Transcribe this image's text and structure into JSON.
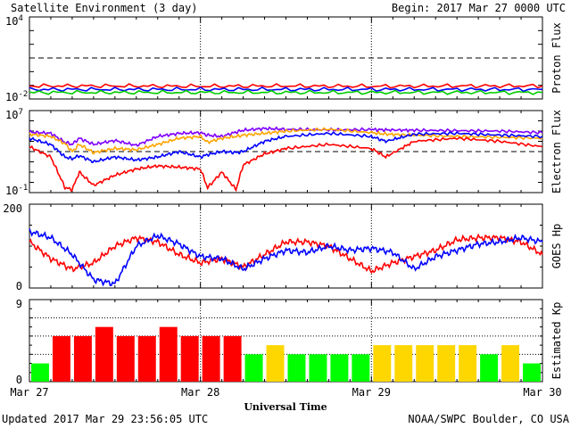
{
  "header": {
    "title": "Satellite Environment (3 day)",
    "begin": "Begin:  2017 Mar 27 0000 UTC"
  },
  "footer": {
    "updated": "Updated 2017 Mar 29 23:56:05 UTC",
    "credit": "NOAA/SWPC Boulder, CO USA"
  },
  "xaxis": {
    "label": "Universal Time",
    "ticks": [
      "Mar 27",
      "Mar 28",
      "Mar 29",
      "Mar 30"
    ]
  },
  "chart_data": [
    {
      "id": "proton",
      "type": "line",
      "ylabel": "Proton Flux",
      "ylim": [
        0.01,
        10000
      ],
      "ytick_labels": [
        {
          "base": "10",
          "exp": "4"
        },
        {
          "base": "10",
          "exp": "-2"
        }
      ],
      "log": true,
      "x": [
        0,
        12,
        24,
        36,
        48,
        60,
        72
      ],
      "reference_line": 10,
      "series": [
        {
          "color": "#ff0000",
          "values": [
            0.09,
            0.09,
            0.085,
            0.09,
            0.085,
            0.09,
            0.09
          ]
        },
        {
          "color": "#0000ff",
          "values": [
            0.05,
            0.05,
            0.05,
            0.05,
            0.05,
            0.05,
            0.05
          ]
        },
        {
          "color": "#00cc00",
          "values": [
            0.03,
            0.03,
            0.03,
            0.03,
            0.03,
            0.03,
            0.03
          ]
        }
      ]
    },
    {
      "id": "electron",
      "type": "line",
      "ylabel": "Electron Flux",
      "ylim": [
        0.1,
        10000000
      ],
      "ytick_labels": [
        {
          "base": "10",
          "exp": "7"
        },
        {
          "base": "10",
          "exp": "-1"
        }
      ],
      "log": true,
      "x": [
        0,
        3,
        5,
        6,
        7,
        9,
        12,
        15,
        18,
        21,
        24,
        25,
        27,
        29,
        30,
        33,
        36,
        42,
        48,
        50,
        54,
        60,
        66,
        72
      ],
      "reference_line": 1000,
      "series": [
        {
          "color": "#7f00ff",
          "values": [
            80000,
            60000,
            8000,
            5000,
            20000,
            5000,
            12000,
            4000,
            30000,
            60000,
            70000,
            40000,
            30000,
            80000,
            120000,
            180000,
            150000,
            130000,
            140000,
            130000,
            120000,
            110000,
            100000,
            70000
          ]
        },
        {
          "color": "#ffa500",
          "values": [
            50000,
            30000,
            6000,
            1000,
            5000,
            800,
            2000,
            1500,
            5000,
            20000,
            30000,
            8000,
            20000,
            30000,
            40000,
            60000,
            100000,
            150000,
            70000,
            50000,
            40000,
            30000,
            25000,
            20000
          ]
        },
        {
          "color": "#0000ff",
          "values": [
            20000,
            5000,
            300,
            200,
            400,
            100,
            300,
            150,
            300,
            1000,
            300,
            500,
            1000,
            800,
            1000,
            10000,
            30000,
            60000,
            30000,
            10000,
            50000,
            60000,
            40000,
            30000
          ]
        },
        {
          "color": "#ff0000",
          "values": [
            3000,
            300,
            0.3,
            0.2,
            10,
            0.5,
            5,
            20,
            40,
            30,
            20,
            0.3,
            10,
            0.2,
            50,
            600,
            2000,
            5000,
            2000,
            300,
            10000,
            20000,
            10000,
            3000
          ]
        }
      ]
    },
    {
      "id": "goes-hp",
      "type": "line",
      "ylabel": "GOES Hp",
      "ylim": [
        0,
        200
      ],
      "ytick_labels": [
        "200",
        "0"
      ],
      "log": false,
      "x": [
        0,
        3,
        6,
        9,
        12,
        15,
        18,
        21,
        24,
        27,
        30,
        33,
        36,
        39,
        42,
        45,
        48,
        51,
        54,
        57,
        60,
        63,
        66,
        69,
        72
      ],
      "series": [
        {
          "color": "#ff0000",
          "values": [
            110,
            70,
            45,
            60,
            100,
            120,
            110,
            80,
            60,
            70,
            50,
            80,
            110,
            110,
            100,
            70,
            40,
            60,
            75,
            90,
            115,
            120,
            120,
            110,
            80
          ]
        },
        {
          "color": "#0000ff",
          "values": [
            135,
            120,
            80,
            20,
            10,
            100,
            125,
            105,
            75,
            70,
            45,
            70,
            90,
            85,
            100,
            90,
            95,
            85,
            45,
            75,
            90,
            105,
            110,
            120,
            110
          ]
        }
      ]
    },
    {
      "id": "kp",
      "type": "bar",
      "ylabel": "Estimated Kp",
      "ylim": [
        0,
        9
      ],
      "ytick_labels": [
        "9",
        "0"
      ],
      "bar_width_hours": 3,
      "values": [
        2,
        5,
        5,
        6,
        5,
        5,
        6,
        5,
        5,
        5,
        3,
        4,
        3,
        3,
        3,
        3,
        4,
        4,
        4,
        4,
        4,
        3,
        4,
        2
      ],
      "colors": [
        "#00ff00",
        "#ff0000",
        "#ff0000",
        "#ff0000",
        "#ff0000",
        "#ff0000",
        "#ff0000",
        "#ff0000",
        "#ff0000",
        "#ff0000",
        "#00ff00",
        "#ffd700",
        "#00ff00",
        "#00ff00",
        "#00ff00",
        "#00ff00",
        "#ffd700",
        "#ffd700",
        "#ffd700",
        "#ffd700",
        "#ffd700",
        "#00ff00",
        "#ffd700",
        "#00ff00"
      ]
    }
  ]
}
